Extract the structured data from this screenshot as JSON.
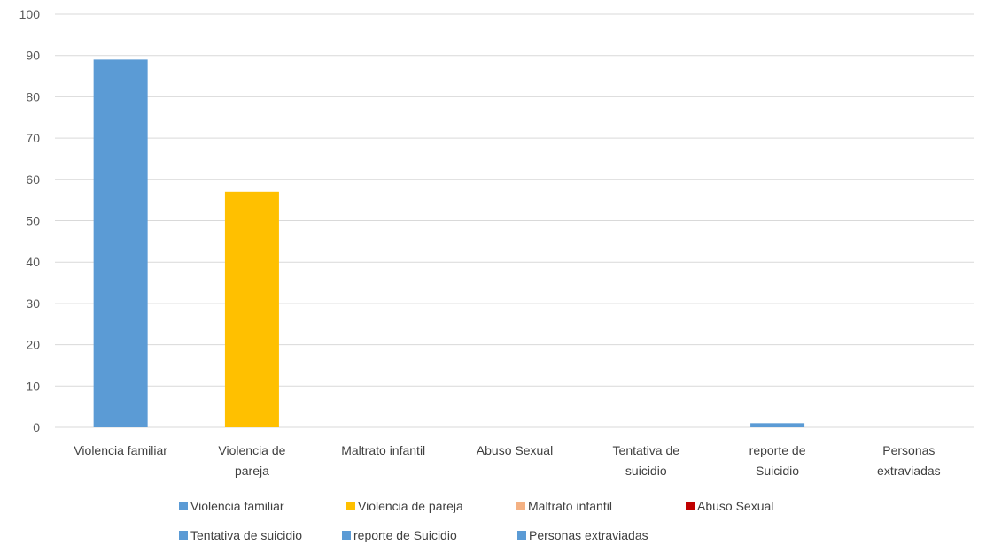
{
  "chart_data": {
    "type": "bar",
    "categories": [
      [
        "Violencia familiar"
      ],
      [
        "Violencia de",
        "pareja"
      ],
      [
        "Maltrato infantil"
      ],
      [
        "Abuso Sexual"
      ],
      [
        "Tentativa de",
        "suicidio"
      ],
      [
        "reporte de",
        "Suicidio"
      ],
      [
        "Personas",
        "extraviadas"
      ]
    ],
    "series": [
      {
        "name": "Violencia familiar",
        "color": "#5B9BD5",
        "values": [
          89,
          0,
          0,
          0,
          0,
          0,
          0
        ]
      },
      {
        "name": "Violencia de pareja",
        "color": "#FFC000",
        "values": [
          0,
          57,
          0,
          0,
          0,
          0,
          0
        ]
      },
      {
        "name": "Maltrato infantil",
        "color": "#F4B183",
        "values": [
          0,
          0,
          0,
          0,
          0,
          0,
          0
        ]
      },
      {
        "name": "Abuso Sexual",
        "color": "#C00000",
        "values": [
          0,
          0,
          0,
          0,
          0,
          0,
          0
        ]
      },
      {
        "name": "Tentativa de suicidio",
        "color": "#5B9BD5",
        "values": [
          0,
          0,
          0,
          0,
          0,
          0,
          0
        ]
      },
      {
        "name": "reporte de Suicidio",
        "color": "#5B9BD5",
        "values": [
          0,
          0,
          0,
          0,
          0,
          1,
          0
        ]
      },
      {
        "name": "Personas extraviadas",
        "color": "#5B9BD5",
        "values": [
          0,
          0,
          0,
          0,
          0,
          0,
          0
        ]
      }
    ],
    "ylim": [
      0,
      100
    ],
    "yticks": [
      0,
      10,
      20,
      30,
      40,
      50,
      60,
      70,
      80,
      90,
      100
    ],
    "grid": true,
    "legend": "bottom"
  }
}
